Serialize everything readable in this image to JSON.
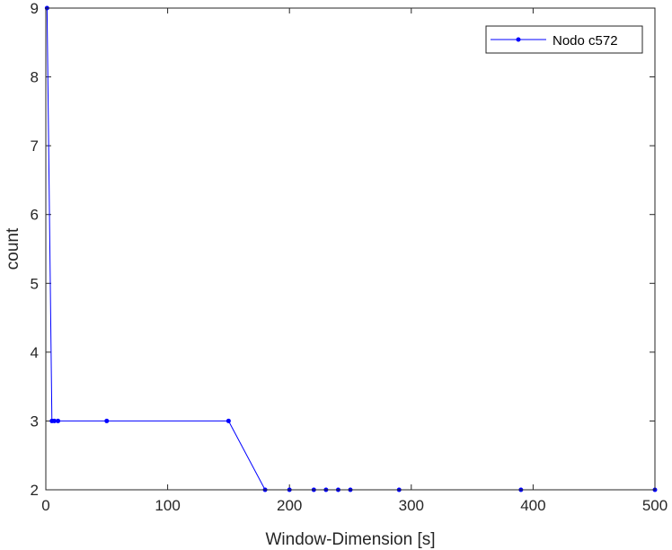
{
  "chart_data": {
    "type": "line",
    "title": "",
    "xlabel": "Window-Dimension [s]",
    "ylabel": "count",
    "xlim": [
      0,
      500
    ],
    "ylim": [
      2,
      9
    ],
    "xticks": [
      0,
      100,
      200,
      300,
      400,
      500
    ],
    "yticks": [
      2,
      3,
      4,
      5,
      6,
      7,
      8,
      9
    ],
    "grid": false,
    "legend_position": "top-right",
    "series": [
      {
        "name": "Nodo c572",
        "color": "#0000ff",
        "marker": "point",
        "x": [
          1,
          5,
          7,
          10,
          50,
          150,
          180,
          200,
          220,
          230,
          240,
          250,
          290,
          390,
          500
        ],
        "y": [
          9,
          3,
          3,
          3,
          3,
          3,
          2,
          2,
          2,
          2,
          2,
          2,
          2,
          2,
          2
        ]
      }
    ]
  }
}
